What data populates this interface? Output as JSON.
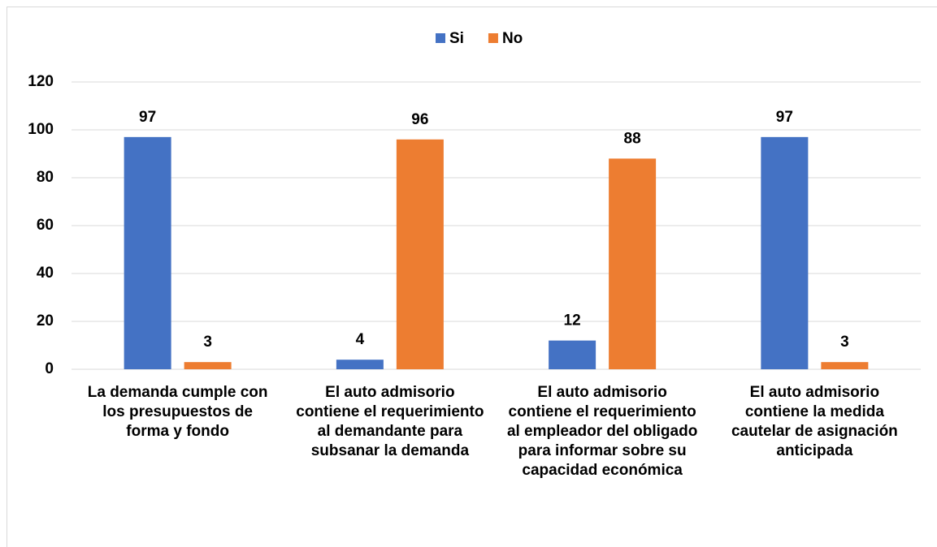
{
  "chart_data": {
    "type": "bar",
    "categories": [
      "La demanda cumple con los presupuestos de forma y fondo",
      "El auto admisorio contiene el requerimiento al demandante para subsanar la demanda",
      "El auto admisorio contiene el requerimiento al empleador del obligado para informar sobre su capacidad económica",
      "El auto admisorio contiene la medida cautelar de asignación anticipada"
    ],
    "series": [
      {
        "name": "Si",
        "color": "#4472c4",
        "values": [
          97,
          4,
          12,
          97
        ]
      },
      {
        "name": "No",
        "color": "#ed7d31",
        "values": [
          3,
          96,
          88,
          3
        ]
      }
    ],
    "ylim": [
      0,
      120
    ],
    "yticks": [
      0,
      20,
      40,
      60,
      80,
      100,
      120
    ],
    "grid": true,
    "legend": "top"
  }
}
